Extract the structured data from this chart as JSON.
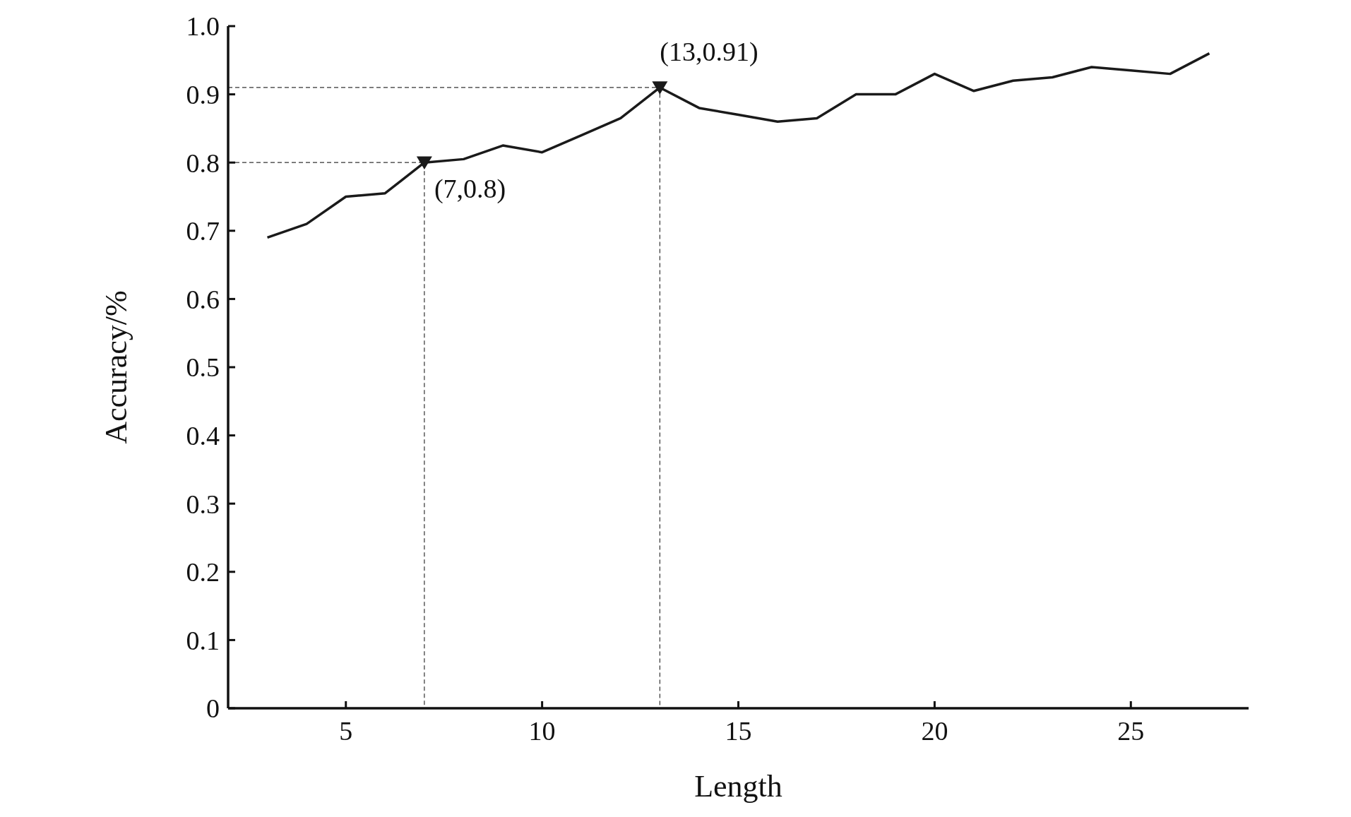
{
  "chart_data": {
    "type": "line",
    "xlabel": "Length",
    "ylabel": "Accuracy/%",
    "x": [
      3,
      4,
      5,
      6,
      7,
      8,
      9,
      10,
      11,
      12,
      13,
      14,
      15,
      16,
      17,
      18,
      19,
      20,
      21,
      22,
      23,
      24,
      25,
      26,
      27
    ],
    "series": [
      {
        "color": "#1a1a1a",
        "marker": "none",
        "values": [
          0.69,
          0.71,
          0.75,
          0.755,
          0.8,
          0.805,
          0.825,
          0.815,
          0.84,
          0.865,
          0.91,
          0.88,
          0.87,
          0.86,
          0.865,
          0.9,
          0.9,
          0.93,
          0.905,
          0.92,
          0.925,
          0.94,
          0.935,
          0.93,
          0.96
        ]
      },
      {
        "type": "line",
        "color": "#333333",
        "marker": "none",
        "line_style": "dashed",
        "x": [
          2,
          7,
          7
        ],
        "values": [
          0.8,
          0.8,
          0
        ]
      },
      {
        "type": "line",
        "color": "#333333",
        "marker": "none",
        "line_style": "dashed",
        "x": [
          2,
          13,
          13
        ],
        "values": [
          0.91,
          0.91,
          0
        ]
      },
      {
        "type": "scatter",
        "color": "#1a1a1a",
        "marker": "triangle",
        "x": [
          7,
          13
        ],
        "values": [
          0.8,
          0.91
        ]
      }
    ],
    "xlim": [
      2,
      28
    ],
    "xticks": [
      5,
      10,
      15,
      20,
      25
    ],
    "ylim": [
      0,
      1
    ],
    "yticks": [
      0,
      0.1,
      0.2,
      0.3,
      0.4,
      0.5,
      0.6,
      0.7,
      0.8,
      0.9,
      {
        "value": 1,
        "label": "1.0"
      }
    ],
    "annotations": [
      {
        "text": "(7,0.8)",
        "x": 7,
        "y": 0.8
      },
      {
        "text": "(13,0.91)",
        "x": 13,
        "y": 0.91
      }
    ],
    "grid": false,
    "legend": false
  }
}
